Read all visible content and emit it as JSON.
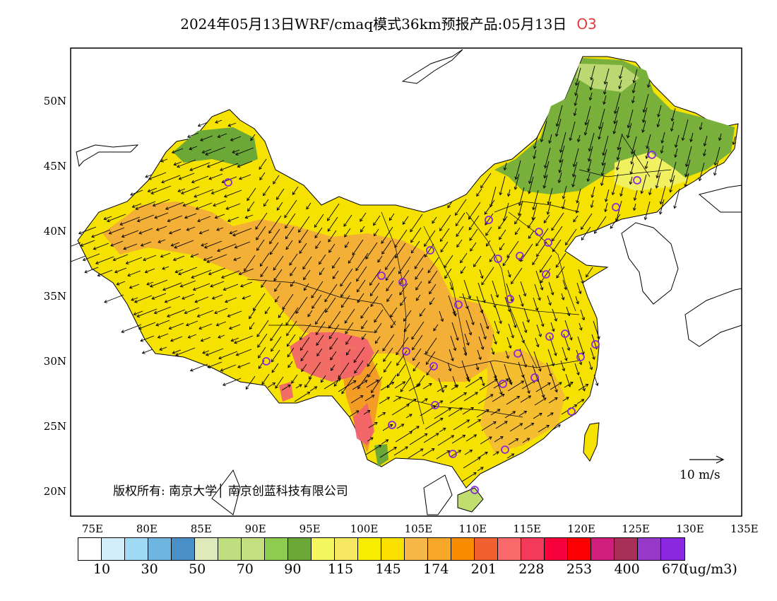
{
  "title": "2024年05月13日WRF/cmaq模式36km预报产品:05月13日",
  "species": "O3",
  "axes": {
    "lat_labels": [
      "50N",
      "45N",
      "40N",
      "35N",
      "30N",
      "25N",
      "20N"
    ],
    "lon_labels": [
      "75E",
      "80E",
      "85E",
      "90E",
      "95E",
      "100E",
      "105E",
      "110E",
      "115E",
      "120E",
      "125E",
      "130E",
      "135E"
    ]
  },
  "copyright": "版权所有: 南京大学│ 南京创蓝科技有限公司",
  "wind_reference": "10 m/s",
  "legend": {
    "unit": "(ug/m3)",
    "labels": [
      "10",
      "30",
      "50",
      "70",
      "90",
      "115",
      "145",
      "174",
      "201",
      "228",
      "253",
      "400",
      "670"
    ],
    "colors": [
      "#ffffff",
      "#d2eefa",
      "#a0daf5",
      "#6eb5e0",
      "#4a90c8",
      "#dfeabb",
      "#bede80",
      "#c4e080",
      "#8ecc50",
      "#6ca838",
      "#f4f660",
      "#f6e860",
      "#f8ec00",
      "#fae000",
      "#f8b848",
      "#f8a828",
      "#f88c00",
      "#f06030",
      "#fa6a6a",
      "#f43a5a",
      "#f8003c",
      "#fa0000",
      "#d01e7c",
      "#a83058",
      "#9838c8",
      "#8a28e0"
    ]
  },
  "colors": {
    "land_base": "#f5e200",
    "high_ozone": "#f09040",
    "peak_ozone": "#f06070",
    "clean_air": "#6ca838",
    "station_marker": "#8a28e0"
  }
}
